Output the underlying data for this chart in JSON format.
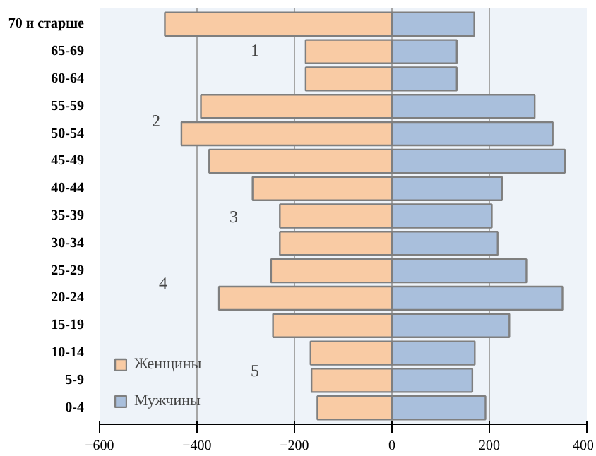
{
  "chart_data": {
    "type": "bar",
    "orientation": "horizontal",
    "categories": [
      "70 и старше",
      "65-69",
      "60-64",
      "55-59",
      "50-54",
      "45-49",
      "40-44",
      "35-39",
      "30-34",
      "25-29",
      "20-24",
      "15-19",
      "10-14",
      "5-9",
      "0-4"
    ],
    "series": [
      {
        "name": "Женщины",
        "color": "#f9cba4",
        "values": [
          -466,
          -177,
          -177,
          -392,
          -432,
          -375,
          -286,
          -230,
          -230,
          -248,
          -355,
          -244,
          -167,
          -165,
          -153
        ]
      },
      {
        "name": "Мужчины",
        "color": "#a9bfdc",
        "values": [
          169,
          133,
          133,
          293,
          330,
          355,
          226,
          205,
          217,
          276,
          350,
          241,
          170,
          165,
          192
        ]
      }
    ],
    "xlim": [
      -600,
      400
    ],
    "xticks": [
      -600,
      -400,
      -200,
      0,
      200,
      400
    ],
    "grid": "x",
    "legend": "bottom left",
    "stacked": true,
    "annotations": [
      "1",
      "2",
      "3",
      "4",
      "5"
    ]
  }
}
